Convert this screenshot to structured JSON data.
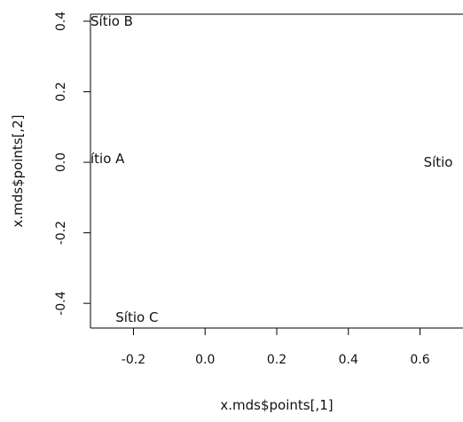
{
  "chart_data": {
    "type": "scatter",
    "title": "",
    "xlabel": "x.mds$points[,1]",
    "ylabel": "x.mds$points[,2]",
    "xlim": [
      -0.32,
      0.72
    ],
    "ylim": [
      -0.47,
      0.42
    ],
    "x_ticks": [
      -0.2,
      0.0,
      0.2,
      0.4,
      0.6
    ],
    "x_tick_labels": [
      "-0.2",
      "0.0",
      "0.2",
      "0.4",
      "0.6"
    ],
    "y_ticks": [
      -0.4,
      -0.2,
      0.0,
      0.2,
      0.4
    ],
    "y_tick_labels": [
      "-0.4",
      "-0.2",
      "0.0",
      "0.2",
      "0.4"
    ],
    "grid": false,
    "legend": "none",
    "points": [
      {
        "x": -0.32,
        "y": 0.4,
        "label": "Sítio B"
      },
      {
        "x": -0.32,
        "y": 0.01,
        "label": "ítio A"
      },
      {
        "x": -0.25,
        "y": -0.44,
        "label": "Sítio C"
      },
      {
        "x": 0.61,
        "y": 0.0,
        "label": "Sítio"
      }
    ]
  }
}
